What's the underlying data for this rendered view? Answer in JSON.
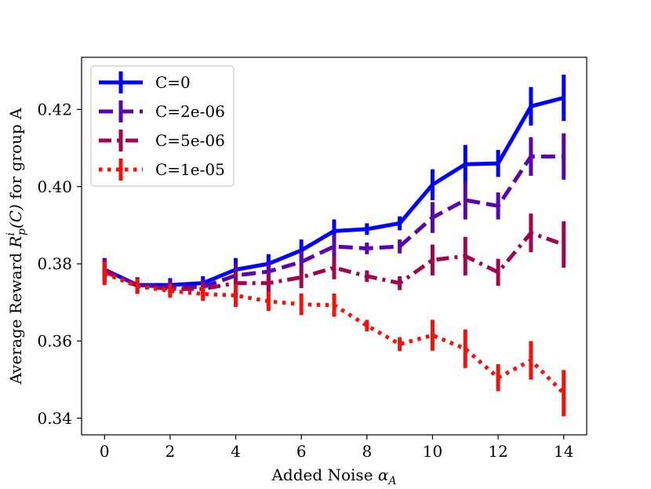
{
  "chart_data": {
    "type": "line",
    "title": "",
    "xlabel": "Added Noise",
    "xlabel_symbol": "α",
    "xlabel_subscript": "A",
    "ylabel_prefix": "Average Reward ",
    "ylabel_math": "R",
    "ylabel_sub": "p",
    "ylabel_sup": "i",
    "ylabel_arg": "(C)",
    "ylabel_suffix": " for group A",
    "xlim": [
      -0.7,
      14.7
    ],
    "ylim": [
      0.3357,
      0.4335
    ],
    "xticks": [
      0,
      2,
      4,
      6,
      8,
      10,
      12,
      14
    ],
    "xtick_labels": [
      "0",
      "2",
      "4",
      "6",
      "8",
      "10",
      "12",
      "14"
    ],
    "yticks": [
      0.34,
      0.36,
      0.38,
      0.4,
      0.42
    ],
    "ytick_labels": [
      "0.34",
      "0.36",
      "0.38",
      "0.40",
      "0.42"
    ],
    "legend_position": "upper-left",
    "x": [
      0,
      1,
      2,
      3,
      4,
      5,
      6,
      7,
      8,
      9,
      10,
      11,
      12,
      13,
      14
    ],
    "series": [
      {
        "name": "C=0",
        "color": "#0000ff",
        "style": "solid",
        "values": [
          0.3785,
          0.3745,
          0.3745,
          0.375,
          0.3785,
          0.38,
          0.3835,
          0.3885,
          0.389,
          0.3905,
          0.4005,
          0.4058,
          0.406,
          0.4208,
          0.423
        ],
        "errors": [
          0.003,
          0.002,
          0.0018,
          0.0018,
          0.003,
          0.0025,
          0.0028,
          0.003,
          0.0015,
          0.0018,
          0.004,
          0.005,
          0.0035,
          0.005,
          0.006
        ]
      },
      {
        "name": "C=2e-06",
        "color": "#5a04b0",
        "style": "dashed",
        "values": [
          0.3785,
          0.3745,
          0.374,
          0.374,
          0.377,
          0.378,
          0.3805,
          0.3845,
          0.384,
          0.3845,
          0.392,
          0.3965,
          0.395,
          0.4078,
          0.4078
        ],
        "errors": [
          0.003,
          0.002,
          0.0018,
          0.0018,
          0.003,
          0.0025,
          0.0028,
          0.003,
          0.0015,
          0.0018,
          0.004,
          0.005,
          0.0035,
          0.005,
          0.006
        ]
      },
      {
        "name": "C=5e-06",
        "color": "#a0064f",
        "style": "dashdot",
        "values": [
          0.378,
          0.3743,
          0.3735,
          0.3735,
          0.375,
          0.375,
          0.3765,
          0.379,
          0.3768,
          0.375,
          0.381,
          0.382,
          0.3778,
          0.388,
          0.385
        ],
        "errors": [
          0.003,
          0.002,
          0.0018,
          0.0018,
          0.003,
          0.0025,
          0.0028,
          0.003,
          0.0015,
          0.0018,
          0.004,
          0.005,
          0.0035,
          0.005,
          0.006
        ]
      },
      {
        "name": "C=1e-05",
        "color": "#f5100a",
        "style": "dotted",
        "values": [
          0.3775,
          0.3742,
          0.373,
          0.3722,
          0.3718,
          0.3703,
          0.3695,
          0.3693,
          0.364,
          0.3592,
          0.3615,
          0.358,
          0.3505,
          0.355,
          0.3465
        ],
        "errors": [
          0.003,
          0.002,
          0.0018,
          0.0018,
          0.003,
          0.0025,
          0.0028,
          0.003,
          0.0015,
          0.0018,
          0.004,
          0.005,
          0.0035,
          0.005,
          0.006
        ]
      }
    ]
  }
}
